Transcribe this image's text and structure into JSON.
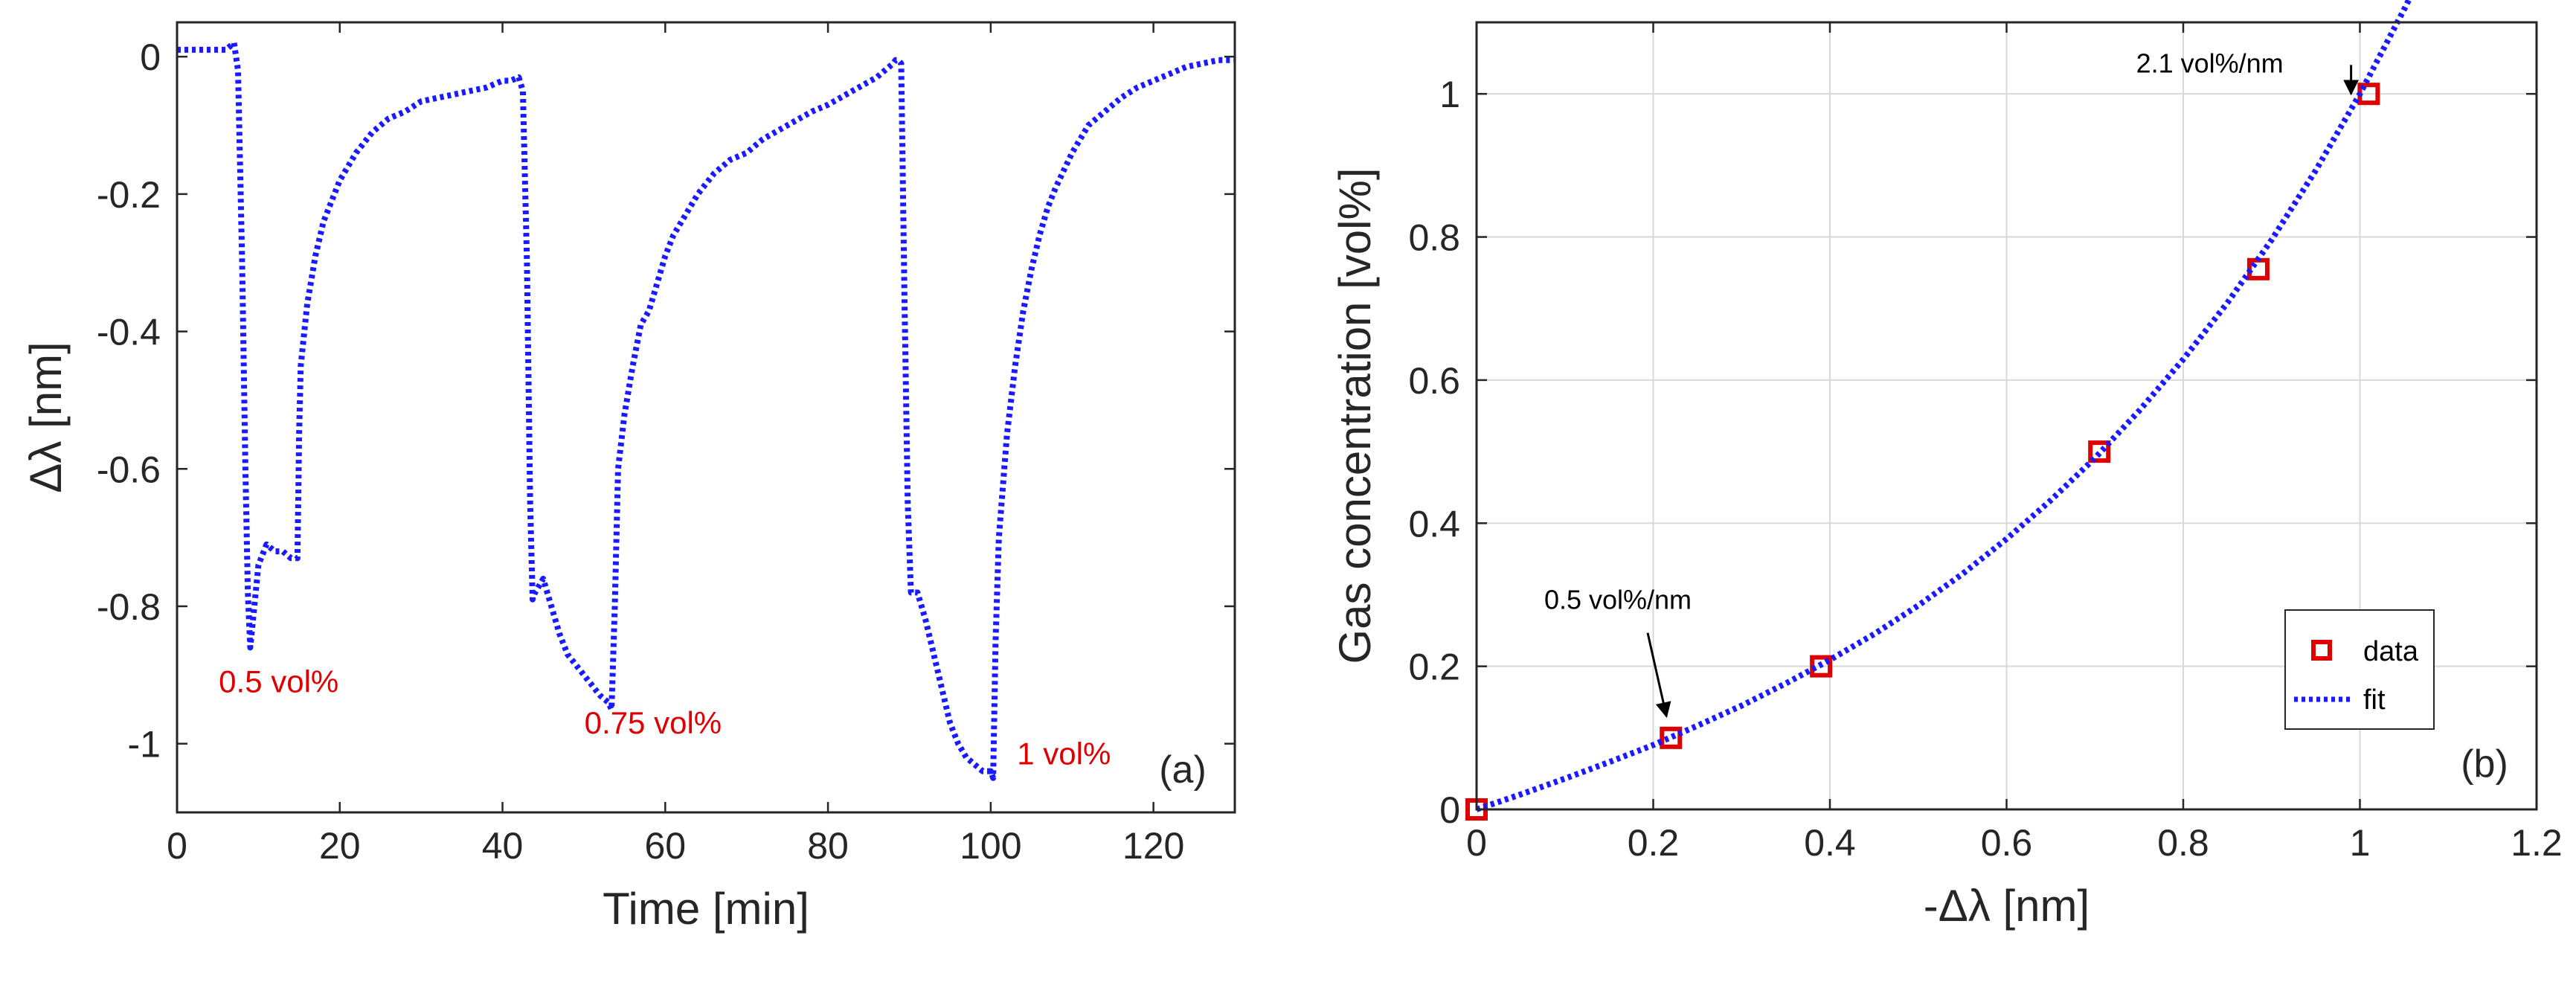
{
  "chart_data": [
    {
      "id": "a",
      "type": "line",
      "panel_label": "(a)",
      "title": "",
      "xlabel": "Time [min]",
      "ylabel": "Δλ [nm]",
      "xlim": [
        0,
        130
      ],
      "ylim": [
        -1.1,
        0.05
      ],
      "xticks": [
        0,
        20,
        40,
        60,
        80,
        100,
        120
      ],
      "xtick_labels": [
        "0",
        "20",
        "40",
        "60",
        "80",
        "100",
        "120"
      ],
      "yticks": [
        0,
        -0.2,
        -0.4,
        -0.6,
        -0.8,
        -1
      ],
      "ytick_labels": [
        "0",
        "-0.2",
        "-0.4",
        "-0.6",
        "-0.8",
        "-1"
      ],
      "grid": false,
      "series": [
        {
          "name": "Δλ",
          "color": "#1a1aff",
          "style": "dotted",
          "x": [
            0,
            2,
            4,
            6,
            7,
            7.5,
            8.0,
            8.4,
            8.7,
            9.0,
            9.5,
            10,
            11,
            12,
            13,
            14,
            14.8,
            15.0,
            15.2,
            16,
            17,
            18,
            20,
            22,
            24,
            26,
            28,
            30,
            32,
            34,
            36,
            38,
            40,
            41,
            42,
            42.5,
            43,
            43.4,
            43.7,
            44,
            44.5,
            45,
            46,
            47,
            48,
            50,
            52,
            53,
            53.4,
            53.8,
            54.2,
            55,
            56,
            57,
            58,
            59,
            60,
            61,
            62,
            64,
            66,
            68,
            70,
            72,
            75,
            78,
            80,
            83,
            86,
            87,
            88,
            88.3,
            88.6,
            89,
            89.4,
            89.8,
            90.2,
            91,
            92,
            93,
            94,
            95,
            96,
            97,
            98,
            99,
            100,
            100.3,
            100.6,
            101,
            102,
            103,
            104,
            105,
            106,
            107,
            108,
            110,
            112,
            114,
            116,
            118,
            120,
            122,
            124,
            126,
            128,
            130
          ],
          "y": [
            0.01,
            0.01,
            0.01,
            0.01,
            0.02,
            -0.02,
            -0.3,
            -0.6,
            -0.78,
            -0.86,
            -0.8,
            -0.74,
            -0.71,
            -0.72,
            -0.72,
            -0.73,
            -0.73,
            -0.55,
            -0.45,
            -0.36,
            -0.29,
            -0.24,
            -0.18,
            -0.14,
            -0.11,
            -0.09,
            -0.08,
            -0.065,
            -0.06,
            -0.055,
            -0.05,
            -0.045,
            -0.035,
            -0.035,
            -0.03,
            -0.05,
            -0.3,
            -0.65,
            -0.79,
            -0.78,
            -0.77,
            -0.76,
            -0.8,
            -0.84,
            -0.87,
            -0.9,
            -0.93,
            -0.94,
            -0.95,
            -0.8,
            -0.6,
            -0.52,
            -0.45,
            -0.39,
            -0.37,
            -0.33,
            -0.29,
            -0.26,
            -0.24,
            -0.2,
            -0.17,
            -0.15,
            -0.14,
            -0.12,
            -0.1,
            -0.08,
            -0.07,
            -0.05,
            -0.03,
            -0.02,
            -0.01,
            -0.005,
            -0.005,
            -0.01,
            -0.35,
            -0.65,
            -0.78,
            -0.78,
            -0.82,
            -0.87,
            -0.92,
            -0.97,
            -1.0,
            -1.02,
            -1.03,
            -1.04,
            -1.04,
            -1.05,
            -0.85,
            -0.7,
            -0.55,
            -0.45,
            -0.37,
            -0.31,
            -0.26,
            -0.22,
            -0.19,
            -0.14,
            -0.1,
            -0.08,
            -0.06,
            -0.045,
            -0.035,
            -0.025,
            -0.015,
            -0.01,
            -0.005,
            -0.005
          ]
        }
      ],
      "annotations": [
        {
          "text": "0.5 vol%",
          "x": 12.5,
          "y": -0.925,
          "color": "#e00000"
        },
        {
          "text": "0.75 vol%",
          "x": 58.5,
          "y": -0.985,
          "color": "#e00000"
        },
        {
          "text": "1 vol%",
          "x": 109.0,
          "y": -1.03,
          "color": "#e00000"
        }
      ]
    },
    {
      "id": "b",
      "type": "scatter",
      "panel_label": "(b)",
      "title": "",
      "xlabel": "-Δλ [nm]",
      "ylabel": "Gas concentration [vol%]",
      "xlim": [
        0,
        1.2
      ],
      "ylim": [
        0,
        1.1
      ],
      "xticks": [
        0,
        0.2,
        0.4,
        0.6,
        0.8,
        1.0,
        1.2
      ],
      "xtick_labels": [
        "0",
        "0.2",
        "0.4",
        "0.6",
        "0.8",
        "1",
        "1.2"
      ],
      "yticks": [
        0,
        0.2,
        0.4,
        0.6,
        0.8,
        1.0
      ],
      "ytick_labels": [
        "0",
        "0.2",
        "0.4",
        "0.6",
        "0.8",
        "1"
      ],
      "grid": true,
      "legend_position": "bottom-right",
      "series": [
        {
          "name": "data",
          "marker": "square",
          "color": "#e00000",
          "x": [
            0,
            0.22,
            0.39,
            0.705,
            0.885,
            1.01
          ],
          "y": [
            0,
            0.1,
            0.2,
            0.5,
            0.755,
            1.0
          ]
        },
        {
          "name": "fit",
          "style": "dotted",
          "color": "#1a1aff",
          "x": [
            0,
            0.05,
            0.1,
            0.15,
            0.2,
            0.25,
            0.3,
            0.35,
            0.4,
            0.45,
            0.5,
            0.55,
            0.6,
            0.65,
            0.7,
            0.75,
            0.8,
            0.85,
            0.9,
            0.95,
            1.0,
            1.05,
            1.066
          ],
          "y": [
            0,
            0.021,
            0.043,
            0.066,
            0.09,
            0.117,
            0.145,
            0.176,
            0.209,
            0.245,
            0.285,
            0.329,
            0.378,
            0.432,
            0.491,
            0.557,
            0.629,
            0.708,
            0.796,
            0.893,
            1.0,
            1.118,
            1.158
          ]
        }
      ],
      "annotations": [
        {
          "text": "0.5 vol%/nm",
          "x": 0.16,
          "y": 0.28,
          "arrow_to": [
            0.215,
            0.13
          ]
        },
        {
          "text": "2.1 vol%/nm",
          "x": 0.83,
          "y": 1.03,
          "arrow_to": [
            0.99,
            1.0
          ]
        }
      ]
    }
  ]
}
